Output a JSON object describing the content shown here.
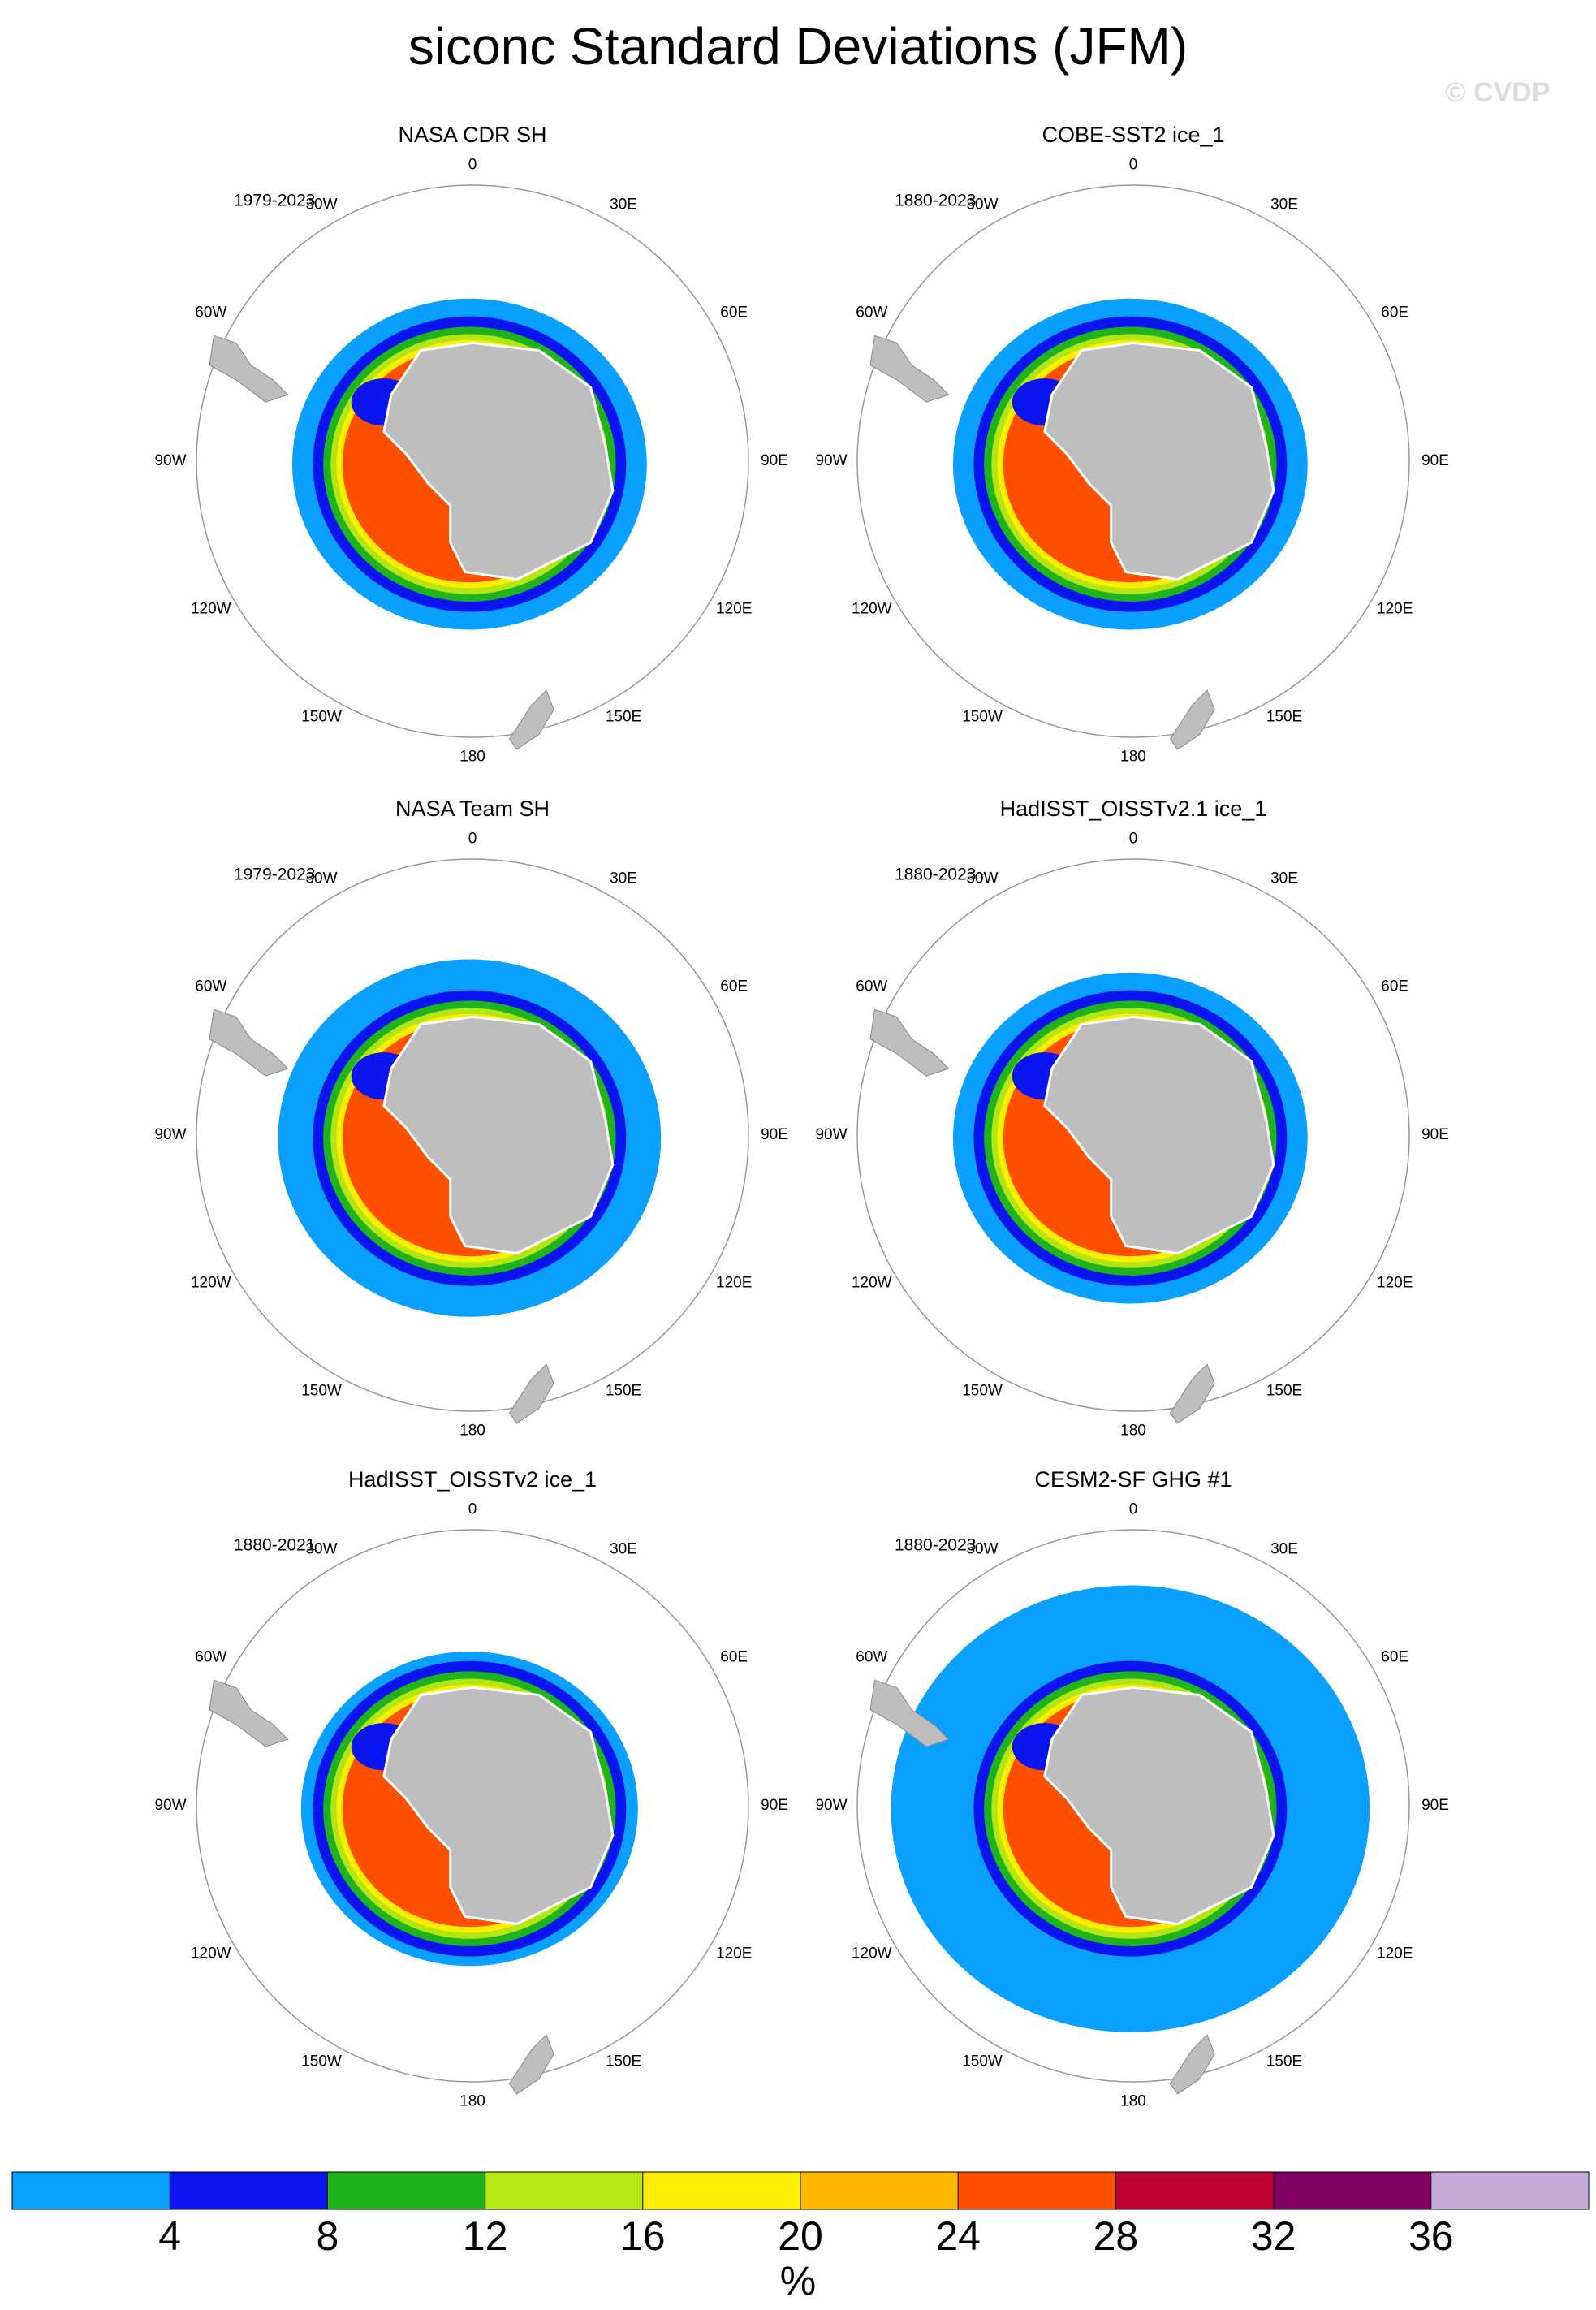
{
  "title": "siconc Standard Deviations (JFM)",
  "watermark": "© CVDP",
  "longitude_labels": [
    "0",
    "30E",
    "60E",
    "90E",
    "120E",
    "150E",
    "180",
    "150W",
    "120W",
    "90W",
    "60W",
    "30W"
  ],
  "panels": [
    {
      "title": "NASA CDR SH",
      "period": "1979-2023"
    },
    {
      "title": "COBE-SST2 ice_1",
      "period": "1880-2023"
    },
    {
      "title": "NASA Team SH",
      "period": "1979-2023"
    },
    {
      "title": "HadISST_OISSTv2.1 ice_1",
      "period": "1880-2023"
    },
    {
      "title": "HadISST_OISSTv2 ice_1",
      "period": "1880-2021"
    },
    {
      "title": "CESM2-SF GHG #1",
      "period": "1880-2023"
    }
  ],
  "colorbar": {
    "levels": [
      4,
      8,
      12,
      16,
      20,
      24,
      28,
      32,
      36
    ],
    "colors": [
      "#0aa0ff",
      "#0a14ee",
      "#20b41c",
      "#b4e614",
      "#ffee00",
      "#ffb800",
      "#ff5000",
      "#be0032",
      "#820064",
      "#c8aad8"
    ],
    "unit": "%"
  }
}
